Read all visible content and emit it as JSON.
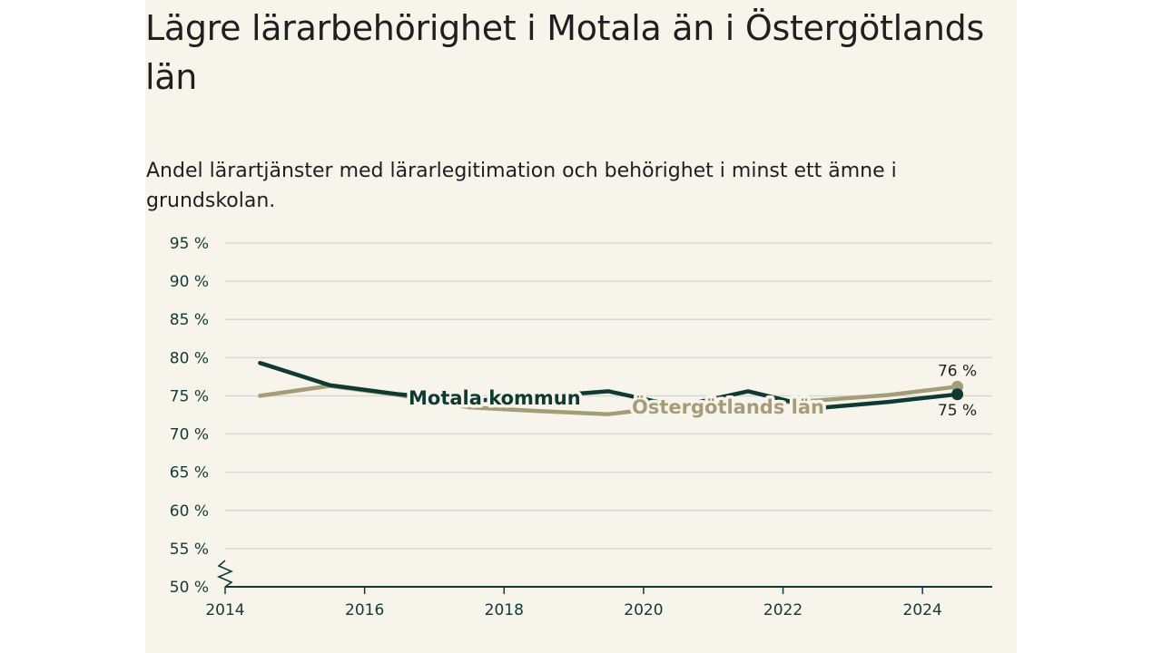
{
  "title": "Lägre lärarbehörighet i Motala än i Östergötlands län",
  "subtitle": "Andel lärartjänster med lärarlegitimation och behörighet i minst ett ämne i grundskolan.",
  "colors": {
    "background": "#f7f5eb",
    "motala": "#0f3a31",
    "lan": "#a49e78",
    "grid": "#d9d8d2",
    "axis": "#123a33"
  },
  "chart_data": {
    "type": "line",
    "title": "Lägre lärarbehörighet i Motala än i Östergötlands län",
    "subtitle": "Andel lärartjänster med lärarlegitimation och behörighet i minst ett ämne i grundskolan.",
    "xlabel": "",
    "ylabel": "",
    "xlim": [
      2014,
      2025
    ],
    "ylim": [
      50,
      95
    ],
    "x_ticks": [
      2014,
      2016,
      2018,
      2020,
      2022,
      2024
    ],
    "x_tick_labels": [
      "2014",
      "2016",
      "2018",
      "2020",
      "2022",
      "2024"
    ],
    "y_ticks": [
      50,
      55,
      60,
      65,
      70,
      75,
      80,
      85,
      90,
      95
    ],
    "y_tick_labels": [
      "50 %",
      "55 %",
      "60 %",
      "65 %",
      "70 %",
      "75 %",
      "80 %",
      "85 %",
      "90 %",
      "95 %"
    ],
    "axis_break": true,
    "grid": true,
    "x": [
      2014.5,
      2015.5,
      2016.5,
      2017.5,
      2018.5,
      2019.5,
      2020.5,
      2021.5,
      2022.5,
      2023.5,
      2024.5
    ],
    "series": [
      {
        "name": "Motala kommun",
        "values": [
          79.3,
          76.4,
          75.2,
          74.3,
          74.9,
          75.6,
          73.6,
          75.6,
          73.4,
          74.2,
          75.2
        ],
        "end_label": "75 %"
      },
      {
        "name": "Östergötlands län",
        "values": [
          75.0,
          76.3,
          75.1,
          73.5,
          73.0,
          72.6,
          73.7,
          73.9,
          74.4,
          75.1,
          76.2
        ],
        "end_label": "76 %"
      }
    ]
  }
}
